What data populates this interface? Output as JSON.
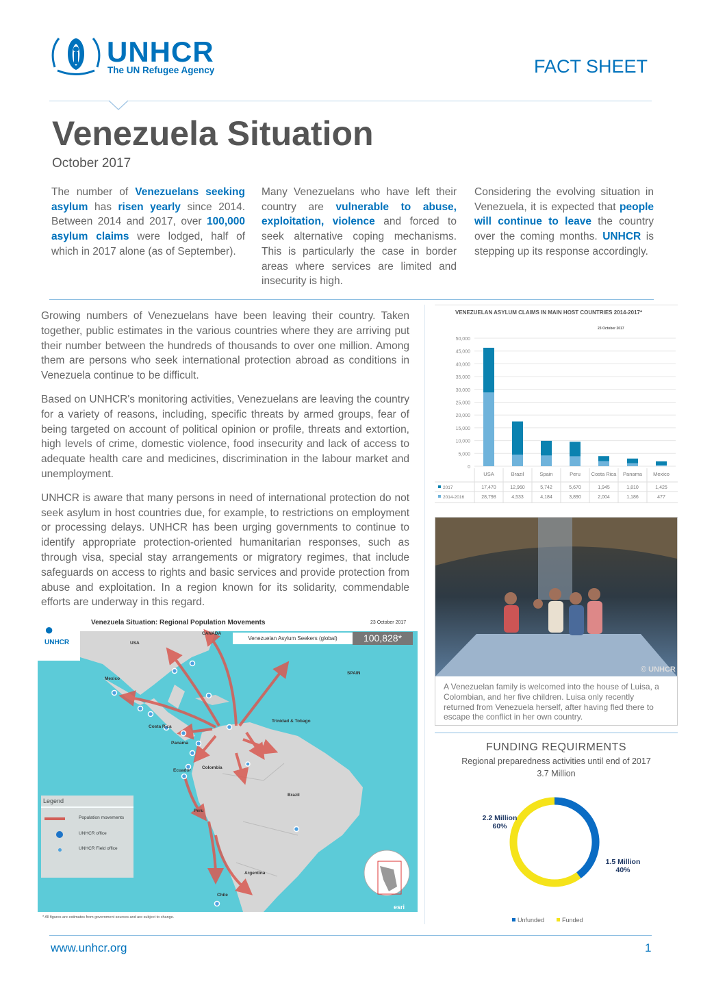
{
  "header": {
    "logo_name": "UNHCR",
    "logo_tagline": "The UN Refugee Agency",
    "doc_type": "FACT SHEET"
  },
  "title": "Venezuela Situation",
  "date": "October 2017",
  "highlights": [
    [
      {
        "t": "The number of "
      },
      {
        "t": "Venezuelans seeking asylum",
        "b": 1
      },
      {
        "t": " has "
      },
      {
        "t": "risen yearly",
        "b": 1
      },
      {
        "t": " since 2014. Between 2014 and 2017, over "
      },
      {
        "t": "100,000 asylum claims",
        "b": 1
      },
      {
        "t": " were lodged, half of which in 2017 alone (as of September)."
      }
    ],
    [
      {
        "t": "Many Venezuelans who have left their country are "
      },
      {
        "t": "vulnerable to abuse, exploitation, violence",
        "b": 1
      },
      {
        "t": " and forced to seek alternative coping mechanisms. This is particularly the case in border areas where services are limited and insecurity is high."
      }
    ],
    [
      {
        "t": "Considering the evolving situation in Venezuela, it is expected that "
      },
      {
        "t": "people will continue to leave",
        "b": 1
      },
      {
        "t": " the country over the coming months. "
      },
      {
        "t": "UNHCR",
        "b": 1
      },
      {
        "t": " is stepping up its response accordingly."
      }
    ]
  ],
  "body": [
    "Growing numbers of Venezuelans have been leaving their country. Taken together, public estimates in the various countries where they are arriving put their number between the hundreds of thousands to over one million. Among them are persons who seek international protection abroad as conditions in Venezuela continue to be difficult.",
    "Based on UNHCR's monitoring activities, Venezuelans are leaving the country for a variety of reasons, including, specific threats by armed groups, fear of being targeted on account of political opinion or profile, threats and extortion, high levels of crime, domestic violence, food insecurity and lack of access to adequate health care and medicines, discrimination in the labour market and unemployment.",
    "UNHCR is aware that many persons in need of international protection do not seek asylum in host countries due, for example, to restrictions on employment or processing delays. UNHCR has been urging governments to continue to identify appropriate protection-oriented humanitarian responses, such as through visa, special stay arrangements or migratory regimes, that include safeguards on access to rights and basic services and provide protection from abuse and exploitation. In a region known for its solidarity, commendable efforts are underway in this regard."
  ],
  "chart_data": [
    {
      "type": "bar",
      "stacked": true,
      "title": "VENEZUELAN ASYLUM CLAIMS IN MAIN HOST COUNTRIES 2014-2017*",
      "subtitle": "23 October 2017",
      "categories": [
        "USA",
        "Brazil",
        "Spain",
        "Peru",
        "Costa Rica",
        "Panama",
        "Mexico"
      ],
      "yticks": [
        "0",
        "5,000",
        "10,000",
        "15,000",
        "20,000",
        "25,000",
        "30,000",
        "35,000",
        "40,000",
        "45,000",
        "50,000"
      ],
      "ylim": [
        0,
        50000
      ],
      "grid": true,
      "series": [
        {
          "name": "2014-2016",
          "color": "#6fb3db",
          "values": [
            28798,
            4533,
            4184,
            3890,
            2004,
            1186,
            477
          ],
          "labels": [
            "28,798",
            "4,533",
            "4,184",
            "3,890",
            "2,004",
            "1,186",
            "477"
          ]
        },
        {
          "name": "2017",
          "color": "#0a82b0",
          "values": [
            17470,
            12960,
            5742,
            5670,
            1945,
            1810,
            1425
          ],
          "labels": [
            "17,470",
            "12,960",
            "5,742",
            "5,670",
            "1,945",
            "1,810",
            "1,425"
          ]
        }
      ]
    },
    {
      "type": "pie",
      "donut": true,
      "title": "FUNDING REQUIRMENTS",
      "subtitle": "Regional preparedness activities until end of 2017",
      "total": "3.7 Million",
      "categories": [
        "Unfunded",
        "Funded"
      ],
      "values": [
        40,
        60
      ],
      "colors": [
        "#0a6cc4",
        "#f5e31a"
      ],
      "labels": [
        "1.5 Million\n40%",
        "2.2 Million\n60%"
      ],
      "legend": "bottom"
    }
  ],
  "photo": {
    "credit": "© UNHCR",
    "caption": "A Venezuelan family is welcomed into the house of Luisa, a Colombian, and her five children. Luisa only recently returned from Venezuela herself, after having fled there to escape the conflict in her own country."
  },
  "map": {
    "title": "Venezuela Situation: Regional Population Movements",
    "date": "23 October 2017",
    "stat_label": "Venezuelan Asylum Seekers (global)",
    "stat_value": "100,828*",
    "places": [
      "USA",
      "CANADA",
      "Mexico",
      "SPAIN",
      "Costa Rica",
      "Panama",
      "Trinidad & Tobago",
      "Colombia",
      "Ecuador",
      "Brazil",
      "Peru",
      "Argentina",
      "Chile"
    ],
    "legend": {
      "title": "Legend",
      "items": [
        "Population movements",
        "UNHCR office",
        "UNHCR Field office"
      ]
    },
    "footnote": "* All figures are estimates from government sources and are subject to change.",
    "colors": {
      "sea": "#5ccbd8",
      "land": "#d6d6d6",
      "arrow": "#d95a52"
    }
  },
  "footer": {
    "url": "www.unhcr.org",
    "page": "1"
  },
  "colors": {
    "brand": "#0072bc"
  }
}
